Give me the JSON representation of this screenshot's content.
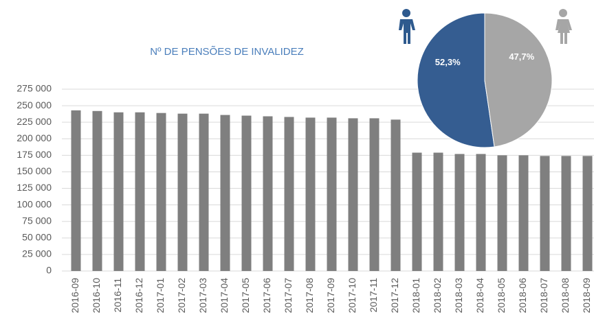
{
  "chart_data": [
    {
      "type": "bar",
      "title": "Nº DE PENSÕES DE INVALIDEZ",
      "categories": [
        "2016-09",
        "2016-10",
        "2016-11",
        "2016-12",
        "2017-01",
        "2017-02",
        "2017-03",
        "2017-04",
        "2017-05",
        "2017-06",
        "2017-07",
        "2017-08",
        "2017-09",
        "2017-10",
        "2017-11",
        "2017-12",
        "2018-01",
        "2018-02",
        "2018-03",
        "2018-04",
        "2018-05",
        "2018-06",
        "2018-07",
        "2018-08",
        "2018-09"
      ],
      "values": [
        243000,
        242000,
        240000,
        240000,
        239000,
        238000,
        238000,
        236000,
        235000,
        234000,
        233000,
        232000,
        232000,
        231000,
        231000,
        229000,
        179000,
        179000,
        177000,
        177000,
        175000,
        175000,
        174000,
        174000,
        174000
      ],
      "color": "#7f7f7f",
      "ylim": [
        0,
        275000
      ],
      "yticks": [
        0,
        {
          "value": 25000,
          "label": "25 000"
        },
        {
          "value": 50000,
          "label": "50 000"
        },
        {
          "value": 75000,
          "label": "75 000"
        },
        {
          "value": 100000,
          "label": "100 000"
        },
        {
          "value": 125000,
          "label": "125 000"
        },
        {
          "value": 150000,
          "label": "150 000"
        },
        {
          "value": 175000,
          "label": "175 000"
        },
        {
          "value": 200000,
          "label": "200 000"
        },
        {
          "value": 225000,
          "label": "225 000"
        },
        {
          "value": 250000,
          "label": "250 000"
        },
        {
          "value": 275000,
          "label": "275 000"
        }
      ],
      "grid": true
    },
    {
      "type": "pie",
      "values": [
        52.3,
        47.7
      ],
      "value_labels": [
        "52,3%",
        "47,7%"
      ],
      "colors": [
        "#355d91",
        "#a6a6a6"
      ]
    }
  ]
}
